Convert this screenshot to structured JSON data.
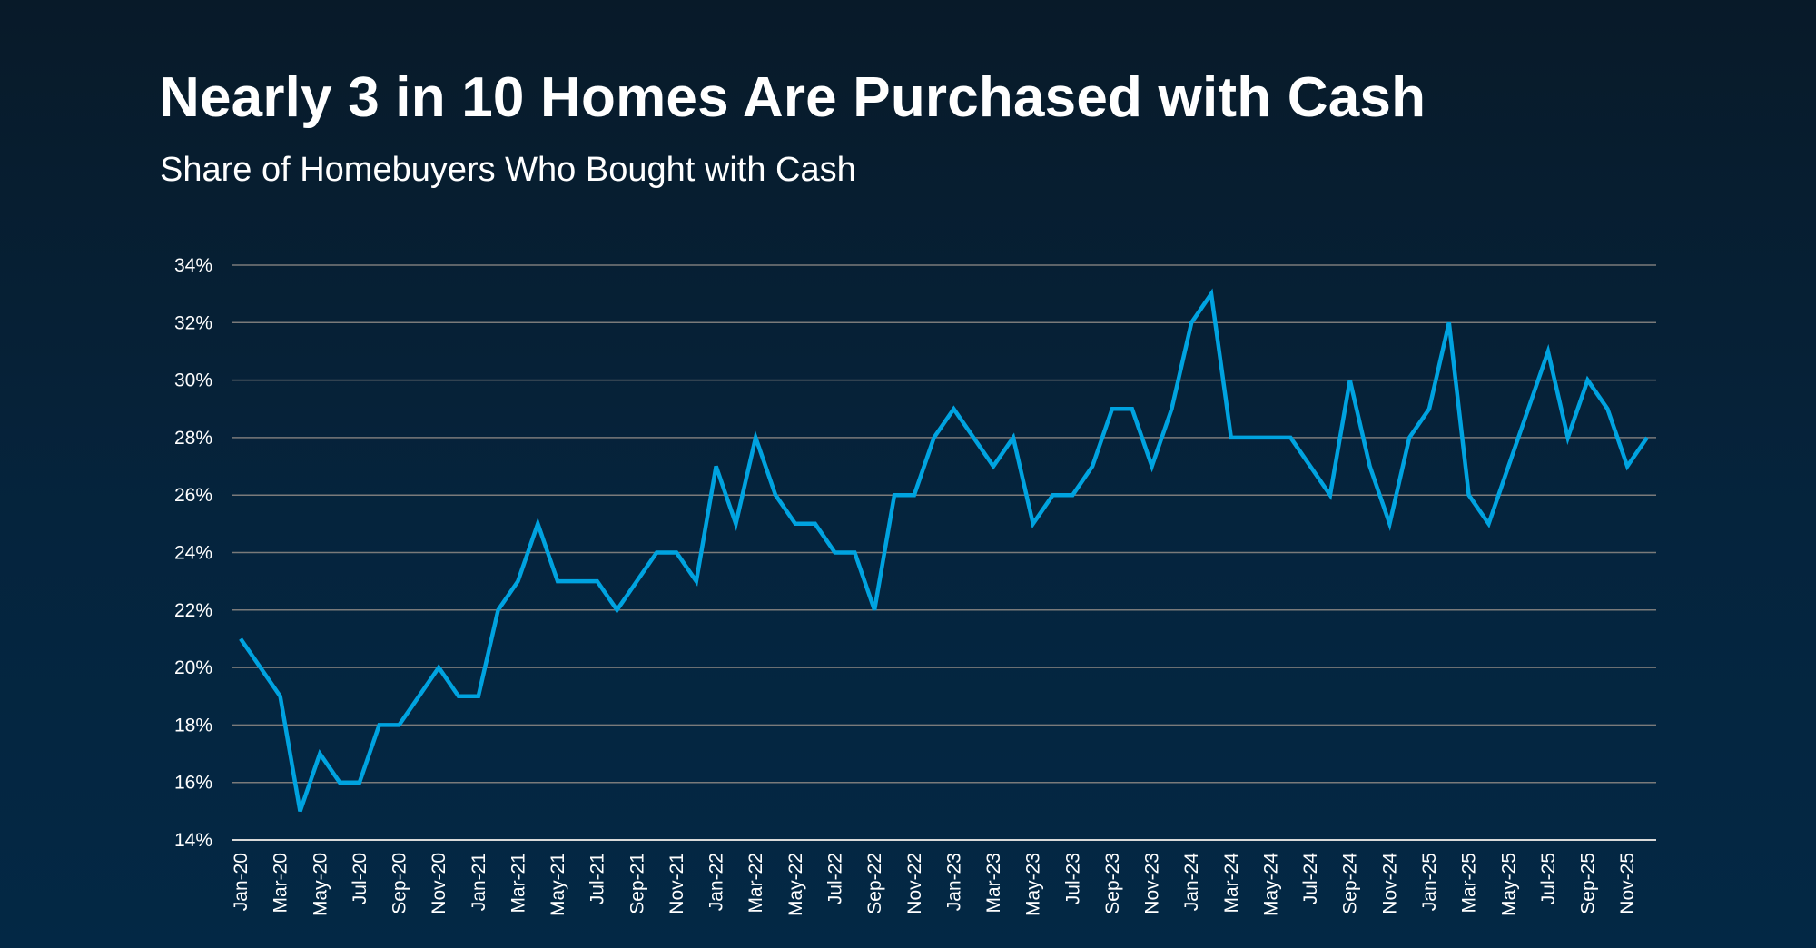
{
  "title": "Nearly 3 in 10 Homes Are Purchased with Cash",
  "subtitle": "Share of Homebuyers Who Bought with Cash",
  "chart_data": {
    "type": "line",
    "title": "Nearly 3 in 10 Homes Are Purchased with Cash",
    "subtitle": "Share of Homebuyers Who Bought with Cash",
    "xlabel": "",
    "ylabel": "",
    "ylim": [
      14,
      34
    ],
    "y_ticks": [
      "14%",
      "16%",
      "18%",
      "20%",
      "22%",
      "24%",
      "26%",
      "28%",
      "30%",
      "32%",
      "34%"
    ],
    "x_tick_labels": [
      "Jan-20",
      "Mar-20",
      "May-20",
      "Jul-20",
      "Sep-20",
      "Nov-20",
      "Jan-21",
      "Mar-21",
      "May-21",
      "Jul-21",
      "Sep-21",
      "Nov-21",
      "Jan-22",
      "Mar-22",
      "May-22",
      "Jul-22",
      "Sep-22",
      "Nov-22",
      "Jan-23",
      "Mar-23",
      "May-23",
      "Jul-23",
      "Sep-23",
      "Nov-23",
      "Jan-24",
      "Mar-24",
      "May-24",
      "Jul-24",
      "Sep-24",
      "Nov-24",
      "Jan-25",
      "Mar-25",
      "May-25",
      "Jul-25",
      "Sep-25",
      "Nov-25"
    ],
    "grid": true,
    "line_color": "#00a3e0",
    "x": [
      "Jan-20",
      "Feb-20",
      "Mar-20",
      "Apr-20",
      "May-20",
      "Jun-20",
      "Jul-20",
      "Aug-20",
      "Sep-20",
      "Oct-20",
      "Nov-20",
      "Dec-20",
      "Jan-21",
      "Feb-21",
      "Mar-21",
      "Apr-21",
      "May-21",
      "Jun-21",
      "Jul-21",
      "Aug-21",
      "Sep-21",
      "Oct-21",
      "Nov-21",
      "Dec-21",
      "Jan-22",
      "Feb-22",
      "Mar-22",
      "Apr-22",
      "May-22",
      "Jun-22",
      "Jul-22",
      "Aug-22",
      "Sep-22",
      "Oct-22",
      "Nov-22",
      "Dec-22",
      "Jan-23",
      "Feb-23",
      "Mar-23",
      "Apr-23",
      "May-23",
      "Jun-23",
      "Jul-23",
      "Aug-23",
      "Sep-23",
      "Oct-23",
      "Nov-23",
      "Dec-23",
      "Jan-24",
      "Feb-24",
      "Mar-24",
      "Apr-24",
      "May-24",
      "Jun-24",
      "Jul-24",
      "Aug-24",
      "Sep-24",
      "Oct-24",
      "Nov-24",
      "Dec-24",
      "Jan-25",
      "Feb-25",
      "Mar-25",
      "Apr-25",
      "May-25",
      "Jun-25",
      "Jul-25",
      "Aug-25",
      "Sep-25",
      "Oct-25",
      "Nov-25",
      "Dec-25"
    ],
    "values": [
      21,
      20,
      19,
      15,
      17,
      16,
      16,
      18,
      18,
      19,
      20,
      19,
      19,
      22,
      23,
      25,
      23,
      23,
      23,
      22,
      23,
      24,
      24,
      23,
      27,
      25,
      28,
      26,
      25,
      25,
      24,
      24,
      22,
      26,
      26,
      28,
      29,
      28,
      27,
      28,
      25,
      26,
      26,
      27,
      29,
      29,
      27,
      29,
      32,
      33,
      28,
      28,
      28,
      28,
      27,
      26,
      30,
      27,
      25,
      28,
      29,
      32,
      26,
      25,
      27,
      29,
      31,
      28,
      30,
      29,
      27,
      28
    ]
  }
}
